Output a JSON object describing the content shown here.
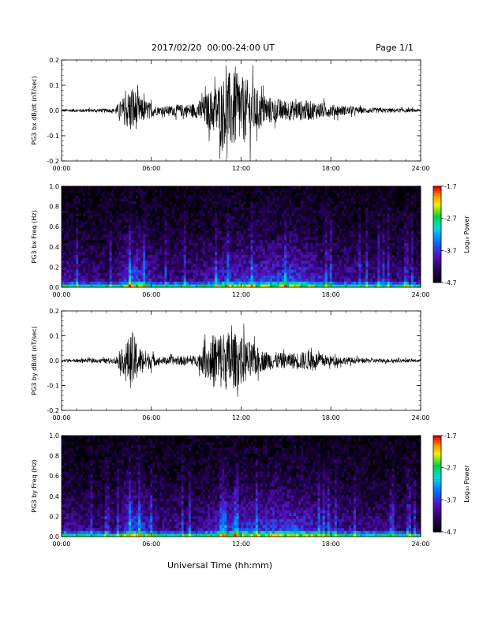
{
  "header": {
    "title": "2017/02/20  00:00-24:00 UT",
    "page": "Page 1/1"
  },
  "xlabel": "Universal Time (hh:mm)",
  "chart_data": [
    {
      "type": "line",
      "ylabel": "PG3 bx dB/dt (nT/sec)",
      "xlim": [
        0,
        24
      ],
      "ylim": [
        -0.2,
        0.2
      ],
      "xticks": [
        "00:00",
        "06:00",
        "12:00",
        "18:00",
        "24:00"
      ],
      "yticks": [
        "-0.2",
        "-0.1",
        "0.0",
        "0.1",
        "0.2"
      ],
      "activity_envelope": [
        {
          "t": 0,
          "amp": 0.006
        },
        {
          "t": 3.5,
          "amp": 0.008
        },
        {
          "t": 4.1,
          "amp": 0.05
        },
        {
          "t": 4.7,
          "amp": 0.1
        },
        {
          "t": 5.3,
          "amp": 0.05
        },
        {
          "t": 6.5,
          "amp": 0.015
        },
        {
          "t": 9,
          "amp": 0.03
        },
        {
          "t": 10.3,
          "amp": 0.1
        },
        {
          "t": 11.3,
          "amp": 0.16
        },
        {
          "t": 12.5,
          "amp": 0.12
        },
        {
          "t": 13.5,
          "amp": 0.06
        },
        {
          "t": 15,
          "amp": 0.04
        },
        {
          "t": 16.5,
          "amp": 0.04
        },
        {
          "t": 18,
          "amp": 0.025
        },
        {
          "t": 20,
          "amp": 0.012
        },
        {
          "t": 24,
          "amp": 0.006
        }
      ]
    },
    {
      "type": "heatmap",
      "ylabel": "PG3 bx Freq (Hz)",
      "xlim": [
        0,
        24
      ],
      "ylim": [
        0,
        1.0
      ],
      "xticks": [
        "00:00",
        "06:00",
        "12:00",
        "18:00",
        "24:00"
      ],
      "yticks": [
        "0.0",
        "0.2",
        "0.4",
        "0.6",
        "0.8",
        "1.0"
      ],
      "colorbar": {
        "label": "Log₁₀ Power",
        "ticks": [
          "-1.7",
          "-2.7",
          "-3.7",
          "-4.7"
        ],
        "range": [
          -4.7,
          -1.7
        ]
      },
      "activity_envelope": [
        {
          "t": 0,
          "amp": 0.35
        },
        {
          "t": 1,
          "amp": 0.3
        },
        {
          "t": 3.5,
          "amp": 0.25
        },
        {
          "t": 4.7,
          "amp": 0.55
        },
        {
          "t": 6.5,
          "amp": 0.3
        },
        {
          "t": 9,
          "amp": 0.3
        },
        {
          "t": 11.3,
          "amp": 0.45
        },
        {
          "t": 12.5,
          "amp": 0.45
        },
        {
          "t": 15.5,
          "amp": 0.5
        },
        {
          "t": 18,
          "amp": 0.35
        },
        {
          "t": 20,
          "amp": 0.3
        },
        {
          "t": 24,
          "amp": 0.25
        }
      ]
    },
    {
      "type": "line",
      "ylabel": "PG3 by dB/dt (nT/sec)",
      "xlim": [
        0,
        24
      ],
      "ylim": [
        -0.2,
        0.2
      ],
      "xticks": [
        "00:00",
        "06:00",
        "12:00",
        "18:00",
        "24:00"
      ],
      "yticks": [
        "-0.2",
        "-0.1",
        "0.0",
        "0.1",
        "0.2"
      ],
      "activity_envelope": [
        {
          "t": 0,
          "amp": 0.006
        },
        {
          "t": 3.5,
          "amp": 0.01
        },
        {
          "t": 4.1,
          "amp": 0.05
        },
        {
          "t": 4.7,
          "amp": 0.12
        },
        {
          "t": 5.3,
          "amp": 0.05
        },
        {
          "t": 6.5,
          "amp": 0.015
        },
        {
          "t": 9,
          "amp": 0.02
        },
        {
          "t": 10.3,
          "amp": 0.12
        },
        {
          "t": 11.3,
          "amp": 0.12
        },
        {
          "t": 12.5,
          "amp": 0.08
        },
        {
          "t": 13.5,
          "amp": 0.04
        },
        {
          "t": 15,
          "amp": 0.03
        },
        {
          "t": 16.5,
          "amp": 0.04
        },
        {
          "t": 18,
          "amp": 0.02
        },
        {
          "t": 20,
          "amp": 0.01
        },
        {
          "t": 24,
          "amp": 0.006
        }
      ]
    },
    {
      "type": "heatmap",
      "ylabel": "PG3 by Freq (Hz)",
      "xlim": [
        0,
        24
      ],
      "ylim": [
        0,
        1.0
      ],
      "xticks": [
        "00:00",
        "06:00",
        "12:00",
        "18:00",
        "24:00"
      ],
      "yticks": [
        "0.0",
        "0.2",
        "0.4",
        "0.6",
        "0.8",
        "1.0"
      ],
      "colorbar": {
        "label": "Log₁₀ Power",
        "ticks": [
          "-1.7",
          "-2.7",
          "-3.7",
          "-4.7"
        ],
        "range": [
          -4.7,
          -1.7
        ]
      },
      "activity_envelope": [
        {
          "t": 0,
          "amp": 0.35
        },
        {
          "t": 1,
          "amp": 0.3
        },
        {
          "t": 3.5,
          "amp": 0.25
        },
        {
          "t": 4.7,
          "amp": 0.55
        },
        {
          "t": 6.5,
          "amp": 0.3
        },
        {
          "t": 9,
          "amp": 0.3
        },
        {
          "t": 11.3,
          "amp": 0.45
        },
        {
          "t": 12.5,
          "amp": 0.45
        },
        {
          "t": 15.5,
          "amp": 0.5
        },
        {
          "t": 18,
          "amp": 0.35
        },
        {
          "t": 20,
          "amp": 0.3
        },
        {
          "t": 24,
          "amp": 0.25
        }
      ]
    }
  ]
}
